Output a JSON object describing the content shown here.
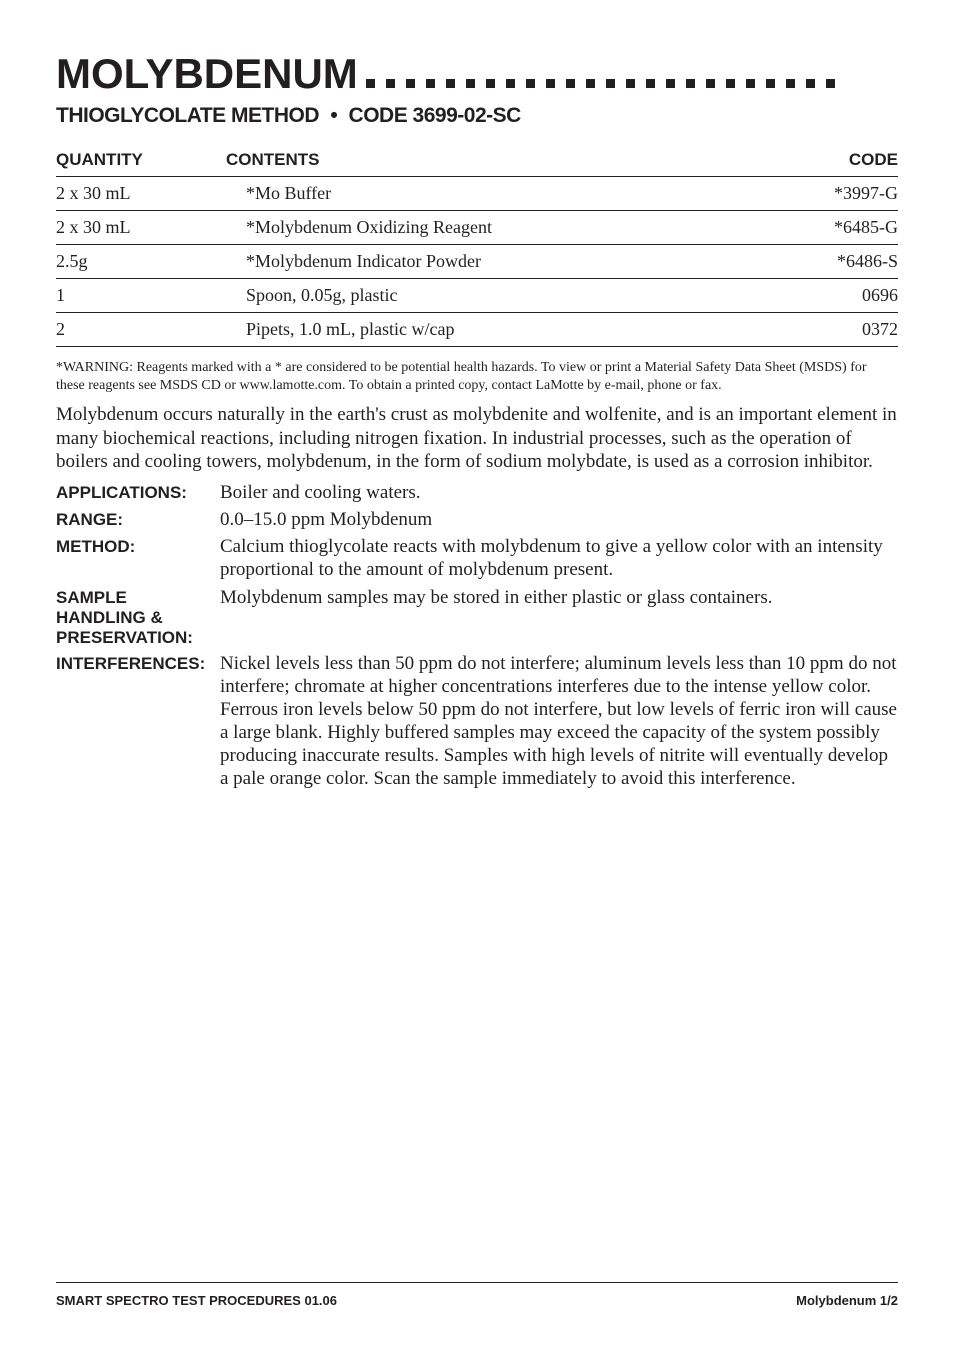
{
  "title": "MOLYBDENUM",
  "subtitle_method": "THIOGLYCOLATE METHOD",
  "subtitle_bullet": "•",
  "subtitle_code": "CODE 3699-02-SC",
  "table": {
    "headers": {
      "qty": "QUANTITY",
      "contents": "CONTENTS",
      "code": "CODE"
    },
    "rows": [
      {
        "qty": "2 x 30 mL",
        "content": "*Mo Buffer",
        "code": "*3997-G"
      },
      {
        "qty": "2 x 30 mL",
        "content": "*Molybdenum Oxidizing Reagent",
        "code": "*6485-G"
      },
      {
        "qty": "2.5g",
        "content": "*Molybdenum Indicator Powder",
        "code": "*6486-S"
      },
      {
        "qty": "1",
        "content": "Spoon, 0.05g, plastic",
        "code": "0696"
      },
      {
        "qty": "2",
        "content": "Pipets, 1.0 mL, plastic w/cap",
        "code": "0372"
      }
    ]
  },
  "warning": "*WARNING: Reagents marked with a * are considered to be potential health hazards. To view or print a Material Safety Data Sheet (MSDS) for these reagents see MSDS CD or www.lamotte.com. To obtain a printed copy, contact LaMotte by e-mail, phone or fax.",
  "intro": "Molybdenum occurs naturally in the earth's crust as molybdenite and wolfenite, and is an important element in many biochemical reactions, including nitrogen fixation. In industrial processes, such as the operation of boilers and cooling towers, molybdenum, in the form of sodium molybdate, is used as a corrosion inhibitor.",
  "definitions": [
    {
      "label": "APPLICATIONS:",
      "value": "Boiler and cooling waters."
    },
    {
      "label": "RANGE:",
      "value": "0.0–15.0 ppm Molybdenum"
    },
    {
      "label": "METHOD:",
      "value": "Calcium thioglycolate reacts with molybdenum to give a yellow color with an intensity proportional to the amount of molybdenum present."
    },
    {
      "label": "SAMPLE HANDLING & PRESERVATION:",
      "value": "Molybdenum samples may be stored in either plastic or glass containers."
    },
    {
      "label": "INTERFERENCES:",
      "value": "Nickel levels less than 50 ppm do not interfere; aluminum levels less than 10 ppm do not interfere; chromate at higher concentrations interferes due to the intense yellow color. Ferrous iron levels below 50 ppm do not interfere, but low levels of ferric iron will cause a large blank. Highly buffered samples may exceed the capacity of the system possibly producing inaccurate results. Samples with high levels of nitrite will eventually develop a pale orange color. Scan the sample immediately to avoid this interference."
    }
  ],
  "footer": {
    "left": "SMART SPECTRO TEST PROCEDURES  01.06",
    "right": "Molybdenum 1/2"
  },
  "colors": {
    "text": "#231f20",
    "background": "#ffffff",
    "border": "#231f20"
  },
  "dot_count": 24
}
